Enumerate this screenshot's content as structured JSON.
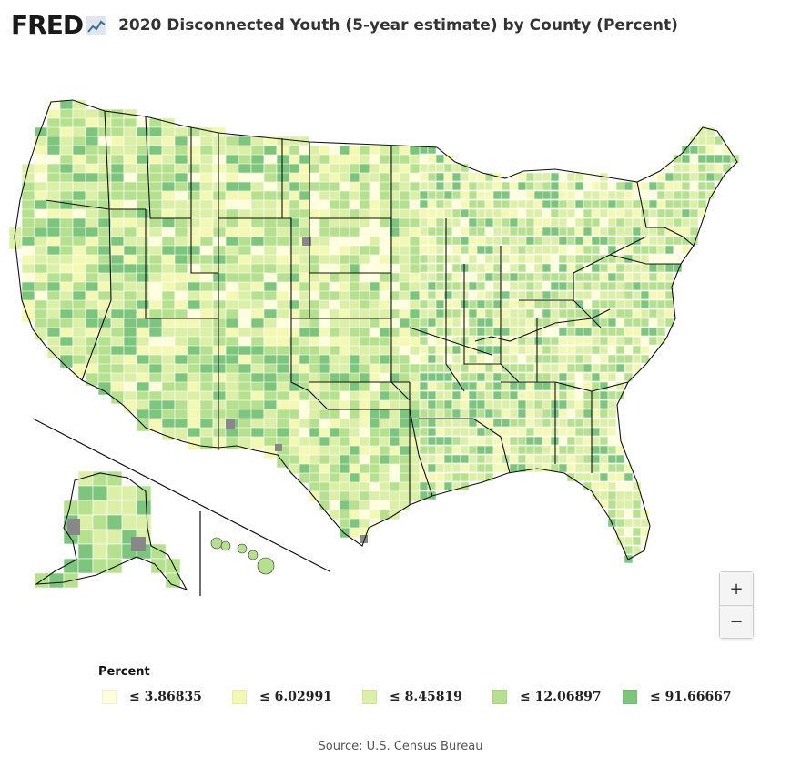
{
  "header": {
    "logo_text": "FRED",
    "logo_icon": "fred-chart-icon",
    "title": "2020 Disconnected Youth (5-year estimate) by County (Percent)"
  },
  "colors": {
    "bin1": "#ffffde",
    "bin2": "#f3f9b3",
    "bin3": "#dcefa6",
    "bin4": "#b5e08e",
    "bin5": "#7cc57c",
    "nodata": "#888888",
    "border": "#ffffff",
    "state_border": "#111111"
  },
  "legend": {
    "title": "Percent",
    "items": [
      {
        "label": "≤ 3.86835",
        "color": "#ffffde"
      },
      {
        "label": "≤ 6.02991",
        "color": "#f3f9b3"
      },
      {
        "label": "≤ 8.45819",
        "color": "#dcefa6"
      },
      {
        "label": "≤ 12.06897",
        "color": "#b5e08e"
      },
      {
        "label": "≤ 91.66667",
        "color": "#7cc57c"
      }
    ]
  },
  "zoom": {
    "in_label": "+",
    "out_label": "−"
  },
  "source": "Source: U.S. Census Bureau"
}
